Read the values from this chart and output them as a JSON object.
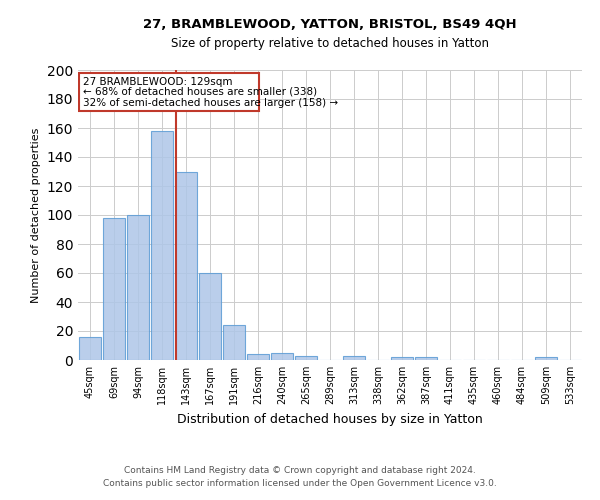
{
  "title1": "27, BRAMBLEWOOD, YATTON, BRISTOL, BS49 4QH",
  "title2": "Size of property relative to detached houses in Yatton",
  "xlabel": "Distribution of detached houses by size in Yatton",
  "ylabel": "Number of detached properties",
  "footer1": "Contains HM Land Registry data © Crown copyright and database right 2024.",
  "footer2": "Contains public sector information licensed under the Open Government Licence v3.0.",
  "annotation_line1": "27 BRAMBLEWOOD: 129sqm",
  "annotation_line2": "← 68% of detached houses are smaller (338)",
  "annotation_line3": "32% of semi-detached houses are larger (158) →",
  "bar_labels": [
    "45sqm",
    "69sqm",
    "94sqm",
    "118sqm",
    "143sqm",
    "167sqm",
    "191sqm",
    "216sqm",
    "240sqm",
    "265sqm",
    "289sqm",
    "313sqm",
    "338sqm",
    "362sqm",
    "387sqm",
    "411sqm",
    "435sqm",
    "460sqm",
    "484sqm",
    "509sqm",
    "533sqm"
  ],
  "bar_values": [
    16,
    98,
    100,
    158,
    130,
    60,
    24,
    4,
    5,
    3,
    0,
    3,
    0,
    2,
    2,
    0,
    0,
    0,
    0,
    2,
    0
  ],
  "bar_color": "#aec6e8",
  "bar_edge_color": "#5b9bd5",
  "redline_x": 3.58,
  "redline_color": "#c0392b",
  "ylim": [
    0,
    200
  ],
  "yticks": [
    0,
    20,
    40,
    60,
    80,
    100,
    120,
    140,
    160,
    180,
    200
  ],
  "annotation_box_color": "#c0392b",
  "annotation_text_color": "#000000",
  "background_color": "#ffffff",
  "grid_color": "#cccccc"
}
